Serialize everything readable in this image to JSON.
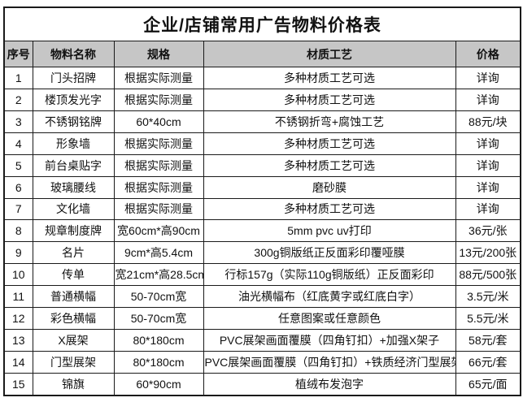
{
  "table": {
    "title": "企业/店铺常用广告物料价格表",
    "columns": [
      "序号",
      "物料名称",
      "规格",
      "材质工艺",
      "价格"
    ],
    "rows": [
      {
        "no": "1",
        "name": "门头招牌",
        "spec": "根据实际测量",
        "material": "多种材质工艺可选",
        "price": "详询"
      },
      {
        "no": "2",
        "name": "楼顶发光字",
        "spec": "根据实际测量",
        "material": "多种材质工艺可选",
        "price": "详询"
      },
      {
        "no": "3",
        "name": "不锈钢铭牌",
        "spec": "60*40cm",
        "material": "不锈钢折弯+腐蚀工艺",
        "price": "88元/块"
      },
      {
        "no": "4",
        "name": "形象墙",
        "spec": "根据实际测量",
        "material": "多种材质工艺可选",
        "price": "详询"
      },
      {
        "no": "5",
        "name": "前台桌贴字",
        "spec": "根据实际测量",
        "material": "多种材质工艺可选",
        "price": "详询"
      },
      {
        "no": "6",
        "name": "玻璃腰线",
        "spec": "根据实际测量",
        "material": "磨砂膜",
        "price": "详询"
      },
      {
        "no": "7",
        "name": "文化墙",
        "spec": "根据实际测量",
        "material": "多种材质工艺可选",
        "price": "详询"
      },
      {
        "no": "8",
        "name": "规章制度牌",
        "spec": "宽60cm*高90cm",
        "material": "5mm pvc uv打印",
        "price": "36元/张"
      },
      {
        "no": "9",
        "name": "名片",
        "spec": "9cm*高5.4cm",
        "material": "300g铜版纸正反面彩印覆哑膜",
        "price": "13元/200张"
      },
      {
        "no": "10",
        "name": "传单",
        "spec": "宽21cm*高28.5cm",
        "material": "行标157g（实际110g铜版纸）正反面彩印",
        "price": "88元/500张"
      },
      {
        "no": "11",
        "name": "普通横幅",
        "spec": "50-70cm宽",
        "material": "油光横幅布（红底黄字或红底白字）",
        "price": "3.5元/米"
      },
      {
        "no": "12",
        "name": "彩色横幅",
        "spec": "50-70cm宽",
        "material": "任意图案或任意颜色",
        "price": "5.5元/米"
      },
      {
        "no": "13",
        "name": "X展架",
        "spec": "80*180cm",
        "material": "PVC展架画面覆膜（四角钉扣）+加强X架子",
        "price": "58元/套"
      },
      {
        "no": "14",
        "name": "门型展架",
        "spec": "80*180cm",
        "material": "PVC展架画面覆膜（四角钉扣）+铁质经济门型展架",
        "price": "66元/套"
      },
      {
        "no": "15",
        "name": "锦旗",
        "spec": "60*90cm",
        "material": "植绒布发泡字",
        "price": "65元/面"
      }
    ]
  },
  "colors": {
    "header_background": "#c6c6c6",
    "border": "#1a1a1a",
    "page_background": "#ffffff"
  }
}
